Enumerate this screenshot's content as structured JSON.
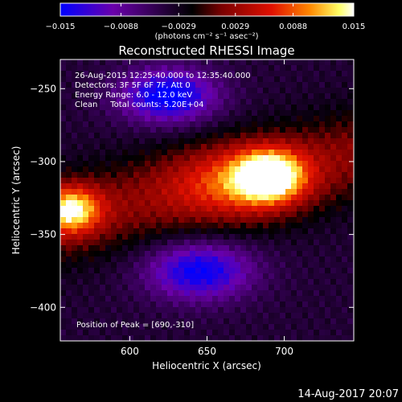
{
  "chart_data": {
    "type": "heatmap",
    "title": "Reconstructed RHESSI Image",
    "xlabel": "Heliocentric X (arcsec)",
    "ylabel": "Heliocentric Y (arcsec)",
    "xlim": [
      555,
      745
    ],
    "ylim": [
      -423,
      -230
    ],
    "x_ticks": [
      600,
      650,
      700
    ],
    "y_ticks": [
      -250,
      -300,
      -350,
      -400
    ],
    "colorbar": {
      "range": [
        -0.015,
        0.015
      ],
      "tick_values": [
        -0.015,
        -0.0088,
        -0.0029,
        0.0029,
        0.0088,
        0.015
      ],
      "tick_labels": [
        "−0.015",
        "−0.0088",
        "−0.0029",
        "0.0029",
        "0.0088",
        "0.015"
      ],
      "unit": "(photons cm⁻² s⁻¹ asec⁻²)",
      "colors": [
        "#0000ff",
        "#6a00aa",
        "#000000",
        "#7a0000",
        "#e01000",
        "#ff8800",
        "#ffff66",
        "#ffffff"
      ]
    },
    "info_lines": [
      "26-Aug-2015 12:25:40.000 to 12:35:40.000",
      "Detectors: 3F 5F 6F 7F, Att 0",
      "Energy Range: 6.0 - 12.0 keV",
      "Clean     Total counts: 5.20E+04"
    ],
    "peak_text": "Position of Peak = [690,-310]",
    "sources": [
      {
        "x": 690,
        "y": -310,
        "amp": 0.0165,
        "sx": 15,
        "sy": 12
      },
      {
        "x": 562,
        "y": -333,
        "amp": 0.0145,
        "sx": 13,
        "sy": 11
      },
      {
        "x": 670,
        "y": -315,
        "amp": 0.0075,
        "sx": 30,
        "sy": 18
      }
    ],
    "ridge": {
      "center_y_at_x555": -340,
      "center_y_at_x745": -295,
      "amplitude": 0.006,
      "width": 22
    },
    "negative_lobes": [
      {
        "x": 625,
        "y": -255,
        "amp": -0.012,
        "sx": 22,
        "sy": 13
      },
      {
        "x": 645,
        "y": -375,
        "amp": -0.011,
        "sx": 24,
        "sy": 14
      }
    ],
    "background": -0.004,
    "timestamp": "14-Aug-2017 20:07"
  }
}
